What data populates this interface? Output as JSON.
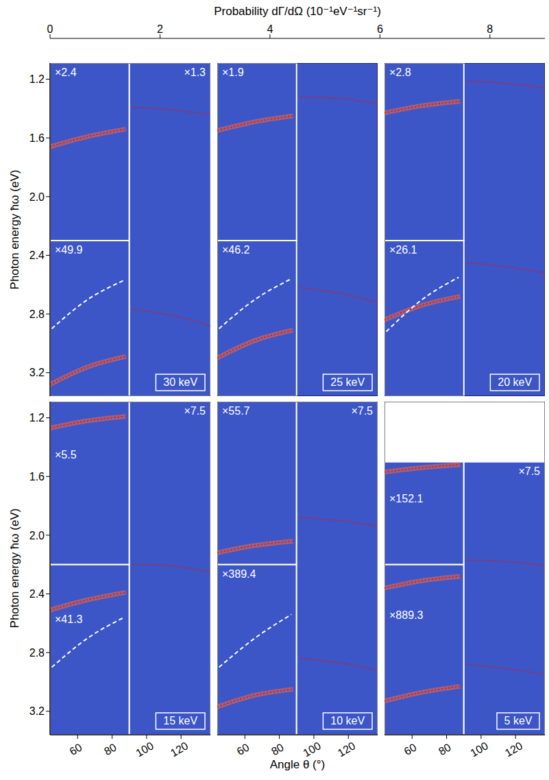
{
  "chart_data": {
    "type": "heatmap",
    "xlabel": "Angle θ (°)",
    "ylabel": "Photon energy ħω (eV)",
    "xlim": [
      44,
      137
    ],
    "ylim": [
      1.09,
      3.36
    ],
    "xticks": [
      60,
      80,
      100,
      120
    ],
    "yticks": [
      1.2,
      1.6,
      {
        "value": 2,
        "label": "2.0"
      },
      2.4,
      2.8,
      3.2
    ],
    "colorbar": {
      "title": "Probability dΓ/dΩ (10⁻¹eV⁻¹sr⁻¹)",
      "lim": [
        0,
        9
      ],
      "ticks": [
        0,
        2,
        4,
        6,
        8
      ]
    },
    "panels": [
      {
        "title": "30 keV",
        "tick_labels": "y",
        "regions": [
          {
            "label": "×2.4",
            "xlim": [
              44,
              90
            ],
            "ylim": [
              1.09,
              2.3
            ]
          },
          {
            "label": "×49.9",
            "xlim": [
              44,
              90
            ],
            "ylim": [
              2.3,
              3.36
            ]
          },
          {
            "label": "×1.3",
            "xlim": [
              90,
              137
            ],
            "ylim": [
              1.09,
              3.36
            ]
          }
        ],
        "series": [
          {
            "color": "#c8202a",
            "line_style": "dotted",
            "x": [
              44,
              66,
              88
            ],
            "values": [
              1.66,
              1.59,
              1.54
            ]
          },
          {
            "color": "#c8202a",
            "line_style": "dotted",
            "x": [
              44,
              66,
              88
            ],
            "values": [
              3.28,
              3.16,
              3.09
            ]
          },
          {
            "color": "#ffffff",
            "line_style": "dashed",
            "x": [
              45,
              66,
              87
            ],
            "values": [
              2.9,
              2.7,
              2.57
            ]
          },
          {
            "color": "#c8202a",
            "line_style": "dotted",
            "x": [
              92,
              115,
              137
            ],
            "values": [
              1.39,
              1.41,
              1.44
            ]
          },
          {
            "color": "#c8202a",
            "line_style": "dotted",
            "x": [
              92,
              115,
              137
            ],
            "values": [
              2.77,
              2.81,
              2.88
            ]
          }
        ]
      },
      {
        "title": "25 keV",
        "tick_labels": false,
        "regions": [
          {
            "label": "×1.9",
            "xlim": [
              44,
              90
            ],
            "ylim": [
              1.09,
              2.3
            ]
          },
          {
            "label": "×46.2",
            "xlim": [
              44,
              90
            ],
            "ylim": [
              2.3,
              3.36
            ]
          }
        ],
        "series": [
          {
            "color": "#c8202a",
            "line_style": "dotted",
            "x": [
              44,
              66,
              88
            ],
            "values": [
              1.55,
              1.49,
              1.45
            ]
          },
          {
            "color": "#c8202a",
            "line_style": "dotted",
            "x": [
              44,
              66,
              88
            ],
            "values": [
              3.1,
              2.98,
              2.91
            ]
          },
          {
            "color": "#ffffff",
            "line_style": "dashed",
            "x": [
              45,
              66,
              87
            ],
            "values": [
              2.9,
              2.7,
              2.56
            ]
          },
          {
            "color": "#c8202a",
            "line_style": "dotted",
            "x": [
              92,
              115,
              137
            ],
            "values": [
              1.32,
              1.33,
              1.37
            ]
          },
          {
            "color": "#c8202a",
            "line_style": "dotted",
            "x": [
              92,
              115,
              137
            ],
            "values": [
              2.62,
              2.66,
              2.72
            ]
          }
        ]
      },
      {
        "title": "20 keV",
        "tick_labels": false,
        "regions": [
          {
            "label": "×2.8",
            "xlim": [
              44,
              90
            ],
            "ylim": [
              1.09,
              2.3
            ]
          },
          {
            "label": "×26.1",
            "xlim": [
              44,
              90
            ],
            "ylim": [
              2.3,
              3.36
            ]
          }
        ],
        "series": [
          {
            "color": "#c8202a",
            "line_style": "dotted",
            "x": [
              44,
              66,
              88
            ],
            "values": [
              1.43,
              1.38,
              1.35
            ]
          },
          {
            "color": "#c8202a",
            "line_style": "dotted",
            "x": [
              44,
              66,
              88
            ],
            "values": [
              2.84,
              2.74,
              2.68
            ]
          },
          {
            "color": "#ffffff",
            "line_style": "dashed",
            "x": [
              45,
              66,
              87
            ],
            "values": [
              2.92,
              2.7,
              2.55
            ]
          },
          {
            "color": "#c8202a",
            "line_style": "dotted",
            "x": [
              92,
              115,
              137
            ],
            "values": [
              1.21,
              1.23,
              1.26
            ]
          },
          {
            "color": "#c8202a",
            "line_style": "dotted",
            "x": [
              92,
              115,
              137
            ],
            "values": [
              2.45,
              2.48,
              2.52
            ]
          }
        ]
      },
      {
        "title": "15 keV",
        "tick_labels": true,
        "regions": [
          {
            "label": "×5.5",
            "xlim": [
              44,
              90
            ],
            "ylim": [
              1.09,
              2.2
            ]
          },
          {
            "label": "×41.3",
            "xlim": [
              44,
              90
            ],
            "ylim": [
              2.2,
              3.36
            ]
          },
          {
            "label": "×7.5",
            "xlim": [
              90,
              137
            ],
            "ylim": [
              1.09,
              3.36
            ]
          }
        ],
        "series": [
          {
            "color": "#c8202a",
            "line_style": "dotted",
            "x": [
              44,
              66,
              88
            ],
            "values": [
              1.27,
              1.22,
              1.19
            ]
          },
          {
            "color": "#c8202a",
            "line_style": "dotted",
            "x": [
              44,
              66,
              88
            ],
            "values": [
              2.51,
              2.44,
              2.39
            ]
          },
          {
            "color": "#ffffff",
            "line_style": "dashed",
            "x": [
              45,
              66,
              87
            ],
            "values": [
              2.9,
              2.7,
              2.56
            ]
          },
          {
            "color": "#c8202a",
            "line_style": "dotted",
            "x": [
              92,
              115,
              137
            ],
            "values": [
              2.2,
              2.21,
              2.25
            ]
          }
        ]
      },
      {
        "title": "10 keV",
        "tick_labels": "x",
        "regions": [
          {
            "label": "×55.7",
            "xlim": [
              44,
              90
            ],
            "ylim": [
              1.09,
              2.2
            ]
          },
          {
            "label": "×389.4",
            "xlim": [
              44,
              90
            ],
            "ylim": [
              2.2,
              3.36
            ]
          },
          {
            "label": "×7.5",
            "xlim": [
              90,
              137
            ],
            "ylim": [
              1.09,
              3.36
            ]
          }
        ],
        "series": [
          {
            "color": "#c8202a",
            "line_style": "dotted",
            "x": [
              44,
              66,
              88
            ],
            "values": [
              2.12,
              2.07,
              2.04
            ]
          },
          {
            "color": "#c8202a",
            "line_style": "dotted",
            "x": [
              44,
              66,
              88
            ],
            "values": [
              3.17,
              3.09,
              3.05
            ]
          },
          {
            "color": "#ffffff",
            "line_style": "dashed",
            "x": [
              45,
              66,
              87
            ],
            "values": [
              2.9,
              2.7,
              2.54
            ]
          },
          {
            "color": "#c8202a",
            "line_style": "dotted",
            "x": [
              92,
              115,
              137
            ],
            "values": [
              1.88,
              1.9,
              1.94
            ]
          },
          {
            "color": "#c8202a",
            "line_style": "dotted",
            "x": [
              92,
              115,
              137
            ],
            "values": [
              2.84,
              2.87,
              2.92
            ]
          }
        ]
      },
      {
        "title": "5 keV",
        "tick_labels": "x",
        "regions": [
          {
            "label": "×152.1",
            "xlim": [
              44,
              90
            ],
            "ylim": [
              1.5,
              2.2
            ]
          },
          {
            "label": "×889.3",
            "xlim": [
              44,
              90
            ],
            "ylim": [
              2.2,
              3.36
            ]
          },
          {
            "label": "×7.5",
            "xlim": [
              90,
              137
            ],
            "ylim": [
              1.5,
              3.36
            ]
          }
        ],
        "series": [
          {
            "color": "#c8202a",
            "line_style": "dotted",
            "x": [
              44,
              66,
              88
            ],
            "values": [
              1.57,
              1.54,
              1.52
            ]
          },
          {
            "color": "#c8202a",
            "line_style": "dotted",
            "x": [
              44,
              66,
              88
            ],
            "values": [
              2.36,
              2.31,
              2.28
            ]
          },
          {
            "color": "#c8202a",
            "line_style": "dotted",
            "x": [
              44,
              66,
              88
            ],
            "values": [
              3.13,
              3.07,
              3.03
            ]
          },
          {
            "color": "#c8202a",
            "line_style": "dotted",
            "x": [
              92,
              115,
              137
            ],
            "values": [
              2.17,
              2.18,
              2.21
            ]
          },
          {
            "color": "#c8202a",
            "line_style": "dotted",
            "x": [
              92,
              115,
              137
            ],
            "values": [
              2.88,
              2.91,
              2.95
            ]
          }
        ]
      }
    ]
  }
}
